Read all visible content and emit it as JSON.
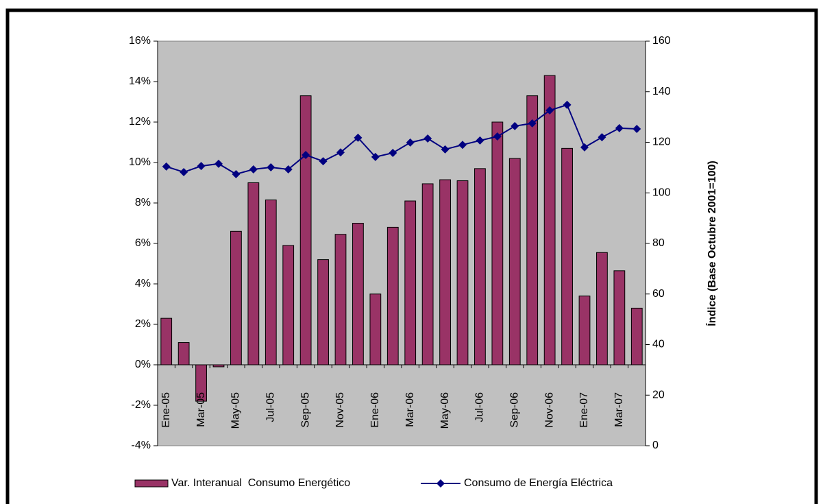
{
  "chart_data": {
    "type": "bar-line",
    "categories": [
      "Ene-05",
      null,
      "Mar-05",
      null,
      "May-05",
      null,
      "Jul-05",
      null,
      "Sep-05",
      null,
      "Nov-05",
      null,
      "Ene-06",
      null,
      "Mar-06",
      null,
      "May-06",
      null,
      "Jul-06",
      null,
      "Sep-06",
      null,
      "Nov-06",
      null,
      "Ene-07",
      null,
      "Mar-07",
      null
    ],
    "series": [
      {
        "name": "Var. Interanual  Consumo Energético",
        "type": "bar",
        "color": "#993366",
        "values": [
          2.3,
          1.1,
          -1.8,
          -0.1,
          6.6,
          9.0,
          8.15,
          5.9,
          13.3,
          5.2,
          6.45,
          7.0,
          3.5,
          6.8,
          8.1,
          8.95,
          9.15,
          9.1,
          9.7,
          12.0,
          10.2,
          13.3,
          14.3,
          10.7,
          3.4,
          5.55,
          4.65,
          2.8
        ]
      },
      {
        "name": "Consumo de Energía Eléctrica",
        "type": "line",
        "axis": "y2",
        "color": "#000080",
        "values": [
          110.4,
          108.2,
          110.6,
          111.5,
          107.4,
          109.3,
          110.1,
          109.3,
          115,
          112.5,
          116,
          121.8,
          114.2,
          115.8,
          119.9,
          121.5,
          117.2,
          119,
          120.7,
          122.3,
          126.4,
          127.5,
          132.6,
          134.8,
          118,
          122,
          125.6,
          125.3
        ]
      }
    ],
    "ylim": [
      -4,
      16
    ],
    "yticks": [
      {
        "value": -4,
        "label": "-4%"
      },
      {
        "value": -2,
        "label": "-2%"
      },
      {
        "value": 0,
        "label": "0%"
      },
      {
        "value": 2,
        "label": "2%"
      },
      {
        "value": 4,
        "label": "4%"
      },
      {
        "value": 6,
        "label": "6%"
      },
      {
        "value": 8,
        "label": "8%"
      },
      {
        "value": 10,
        "label": "10%"
      },
      {
        "value": 12,
        "label": "12%"
      },
      {
        "value": 14,
        "label": "14%"
      },
      {
        "value": 16,
        "label": "16%"
      }
    ],
    "y2lim": [
      0,
      160
    ],
    "y2ticks": [
      0,
      20,
      40,
      60,
      80,
      100,
      120,
      140,
      160
    ],
    "y2label": "Índice (Base Octubre 2001=100)",
    "legend": "bottom"
  }
}
